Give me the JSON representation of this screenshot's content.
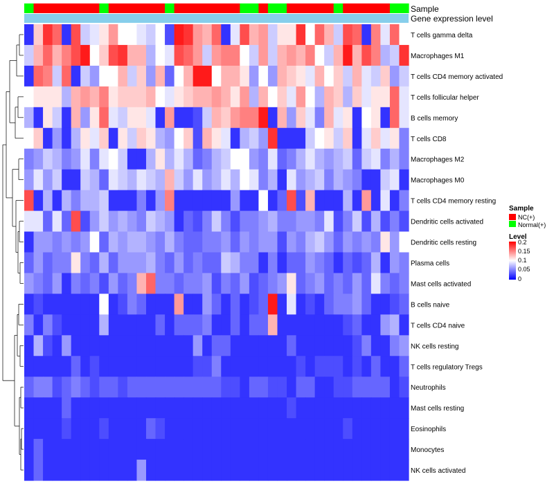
{
  "chart_data": {
    "type": "heatmap",
    "title": "",
    "annotation_tracks": [
      {
        "label": "Sample"
      },
      {
        "label": "Gene expression level"
      }
    ],
    "legend_placement": "right",
    "legends": {
      "sample": {
        "title": "Sample",
        "entries": [
          {
            "label": "NC(+)",
            "color": "#ff0000"
          },
          {
            "label": "Normal(+)",
            "color": "#00ff00"
          }
        ]
      },
      "level": {
        "title": "Level",
        "ticks": [
          "0.2",
          "0.15",
          "0.1",
          "0.05",
          "0"
        ],
        "range": [
          0,
          0.2
        ],
        "colors": {
          "low": "#0000ff",
          "mid": "#ffffff",
          "high": "#ff0000"
        }
      }
    },
    "sample_groups": [
      "Normal(+)",
      "NC(+)",
      "NC(+)",
      "NC(+)",
      "NC(+)",
      "NC(+)",
      "NC(+)",
      "NC(+)",
      "Normal(+)",
      "NC(+)",
      "NC(+)",
      "NC(+)",
      "NC(+)",
      "NC(+)",
      "NC(+)",
      "Normal(+)",
      "NC(+)",
      "NC(+)",
      "NC(+)",
      "NC(+)",
      "NC(+)",
      "NC(+)",
      "NC(+)",
      "Normal(+)",
      "Normal(+)",
      "NC(+)",
      "Normal(+)",
      "Normal(+)",
      "NC(+)",
      "NC(+)",
      "NC(+)",
      "NC(+)",
      "NC(+)",
      "Normal(+)",
      "NC(+)",
      "NC(+)",
      "NC(+)",
      "NC(+)",
      "NC(+)",
      "Normal(+)",
      "Normal(+)"
    ],
    "rows": [
      {
        "label": "T cells gamma delta",
        "values": [
          0.02,
          0.12,
          0.18,
          0.16,
          0.02,
          0.17,
          0.08,
          0.09,
          0.11,
          0.14,
          0.1,
          0.1,
          0.09,
          0.08,
          0.1,
          0.03,
          0.19,
          0.18,
          0.14,
          0.13,
          0.16,
          0.02,
          0.09,
          0.17,
          0.13,
          0.14,
          0.08,
          0.11,
          0.11,
          0.18,
          0.1,
          0.16,
          0.13,
          0.08,
          0.17,
          0.16,
          0.02,
          0.15,
          0.09,
          0.16,
          0.1
        ]
      },
      {
        "label": "Macrophages M1",
        "values": [
          0.08,
          0.13,
          0.16,
          0.13,
          0.15,
          0.17,
          0.19,
          0.1,
          0.12,
          0.17,
          0.18,
          0.13,
          0.13,
          0.07,
          0.1,
          0.09,
          0.17,
          0.16,
          0.14,
          0.08,
          0.14,
          0.15,
          0.15,
          0.1,
          0.08,
          0.14,
          0.08,
          0.13,
          0.14,
          0.13,
          0.15,
          0.1,
          0.08,
          0.13,
          0.19,
          0.13,
          0.17,
          0.15,
          0.07,
          0.08,
          0.18
        ]
      },
      {
        "label": "T cells CD4 memory activated",
        "values": [
          0.02,
          0.16,
          0.15,
          0.08,
          0.16,
          0.02,
          0.08,
          0.06,
          0.1,
          0.1,
          0.13,
          0.08,
          0.12,
          0.06,
          0.13,
          0.04,
          0.1,
          0.13,
          0.19,
          0.19,
          0.1,
          0.13,
          0.13,
          0.11,
          0.06,
          0.1,
          0.06,
          0.13,
          0.12,
          0.11,
          0.09,
          0.13,
          0.1,
          0.12,
          0.08,
          0.13,
          0.09,
          0.08,
          0.12,
          0.06,
          0.08
        ]
      },
      {
        "label": "T cells follicular helper",
        "values": [
          0.1,
          0.11,
          0.11,
          0.11,
          0.07,
          0.13,
          0.14,
          0.13,
          0.15,
          0.11,
          0.12,
          0.12,
          0.12,
          0.13,
          0.1,
          0.09,
          0.11,
          0.12,
          0.13,
          0.13,
          0.14,
          0.13,
          0.11,
          0.14,
          0.07,
          0.13,
          0.1,
          0.12,
          0.09,
          0.14,
          0.1,
          0.07,
          0.13,
          0.12,
          0.07,
          0.12,
          0.09,
          0.11,
          0.11,
          0.16,
          0.09
        ]
      },
      {
        "label": "B cells memory",
        "values": [
          0.07,
          0.02,
          0.11,
          0.08,
          0.02,
          0.13,
          0.06,
          0.11,
          0.16,
          0.09,
          0.08,
          0.11,
          0.11,
          0.09,
          0.02,
          0.14,
          0.02,
          0.02,
          0.03,
          0.08,
          0.13,
          0.12,
          0.14,
          0.15,
          0.15,
          0.19,
          0.02,
          0.13,
          0.06,
          0.12,
          0.09,
          0.05,
          0.13,
          0.09,
          0.11,
          0.02,
          0.1,
          0.11,
          0.02,
          0.16,
          0.09
        ]
      },
      {
        "label": "T cells CD8",
        "values": [
          0.1,
          0.12,
          0.02,
          0.06,
          0.02,
          0.07,
          0.11,
          0.09,
          0.12,
          0.02,
          0.11,
          0.08,
          0.12,
          0.11,
          0.07,
          0.06,
          0.1,
          0.12,
          0.03,
          0.13,
          0.11,
          0.09,
          0.02,
          0.07,
          0.08,
          0.06,
          0.18,
          0.02,
          0.02,
          0.02,
          0.08,
          0.1,
          0.11,
          0.08,
          0.12,
          0.02,
          0.09,
          0.12,
          0.09,
          0.11,
          0.05
        ]
      },
      {
        "label": "Macrophages M2",
        "values": [
          0.05,
          0.06,
          0.08,
          0.07,
          0.05,
          0.06,
          0.09,
          0.05,
          0.09,
          0.1,
          0.08,
          0.02,
          0.02,
          0.07,
          0.11,
          0.07,
          0.09,
          0.07,
          0.04,
          0.05,
          0.07,
          0.08,
          0.1,
          0.1,
          0.06,
          0.05,
          0.09,
          0.04,
          0.05,
          0.07,
          0.09,
          0.07,
          0.06,
          0.07,
          0.08,
          0.04,
          0.08,
          0.09,
          0.05,
          0.07,
          0.05
        ]
      },
      {
        "label": "Macrophages M0",
        "values": [
          0.06,
          0.09,
          0.06,
          0.08,
          0.02,
          0.02,
          0.08,
          0.07,
          0.04,
          0.09,
          0.08,
          0.07,
          0.09,
          0.08,
          0.07,
          0.13,
          0.08,
          0.06,
          0.09,
          0.06,
          0.07,
          0.09,
          0.07,
          0.1,
          0.09,
          0.05,
          0.07,
          0.02,
          0.09,
          0.06,
          0.07,
          0.08,
          0.05,
          0.07,
          0.06,
          0.05,
          0.02,
          0.02,
          0.08,
          0.09,
          0.02
        ]
      },
      {
        "label": "T cells CD4 memory resting",
        "values": [
          0.17,
          0.02,
          0.07,
          0.02,
          0.07,
          0.05,
          0.07,
          0.07,
          0.08,
          0.02,
          0.02,
          0.02,
          0.05,
          0.02,
          0.06,
          0.15,
          0.02,
          0.02,
          0.02,
          0.02,
          0.02,
          0.02,
          0.06,
          0.02,
          0.02,
          0.1,
          0.02,
          0.04,
          0.17,
          0.03,
          0.13,
          0.02,
          0.02,
          0.02,
          0.07,
          0.02,
          0.14,
          0.02,
          0.09,
          0.02,
          0.05
        ]
      },
      {
        "label": "Dendritic cells activated",
        "values": [
          0.09,
          0.09,
          0.04,
          0.09,
          0.04,
          0.17,
          0.03,
          0.06,
          0.08,
          0.06,
          0.07,
          0.06,
          0.05,
          0.08,
          0.07,
          0.06,
          0.02,
          0.04,
          0.03,
          0.05,
          0.08,
          0.05,
          0.03,
          0.05,
          0.05,
          0.06,
          0.07,
          0.05,
          0.05,
          0.06,
          0.06,
          0.05,
          0.09,
          0.03,
          0.05,
          0.08,
          0.03,
          0.07,
          0.03,
          0.05,
          0.03
        ]
      },
      {
        "label": "Dendritic cells resting",
        "values": [
          0.02,
          0.06,
          0.06,
          0.05,
          0.06,
          0.05,
          0.06,
          0.1,
          0.04,
          0.07,
          0.06,
          0.07,
          0.07,
          0.06,
          0.05,
          0.07,
          0.05,
          0.04,
          0.04,
          0.05,
          0.05,
          0.06,
          0.04,
          0.06,
          0.05,
          0.06,
          0.06,
          0.03,
          0.06,
          0.05,
          0.07,
          0.08,
          0.06,
          0.04,
          0.06,
          0.05,
          0.06,
          0.05,
          0.11,
          0.06,
          0.1
        ]
      },
      {
        "label": "Plasma cells",
        "values": [
          0.04,
          0.06,
          0.04,
          0.05,
          0.05,
          0.11,
          0.05,
          0.04,
          0.07,
          0.04,
          0.06,
          0.06,
          0.06,
          0.07,
          0.05,
          0.04,
          0.06,
          0.04,
          0.05,
          0.04,
          0.04,
          0.08,
          0.07,
          0.05,
          0.05,
          0.02,
          0.05,
          0.02,
          0.04,
          0.04,
          0.06,
          0.05,
          0.04,
          0.02,
          0.04,
          0.03,
          0.04,
          0.07,
          0.02,
          0.06,
          0.05
        ]
      },
      {
        "label": "Mast cells activated",
        "values": [
          0.06,
          0.05,
          0.04,
          0.06,
          0.02,
          0.05,
          0.04,
          0.05,
          0.03,
          0.06,
          0.04,
          0.05,
          0.13,
          0.16,
          0.05,
          0.05,
          0.04,
          0.05,
          0.05,
          0.06,
          0.03,
          0.05,
          0.04,
          0.06,
          0.03,
          0.04,
          0.05,
          0.06,
          0.11,
          0.04,
          0.05,
          0.06,
          0.04,
          0.05,
          0.04,
          0.06,
          0.04,
          0.09,
          0.05,
          0.04,
          0.05
        ]
      },
      {
        "label": "B cells naive",
        "values": [
          0.02,
          0.03,
          0.02,
          0.02,
          0.02,
          0.02,
          0.02,
          0.02,
          0.1,
          0.02,
          0.03,
          0.05,
          0.04,
          0.02,
          0.02,
          0.02,
          0.14,
          0.02,
          0.02,
          0.06,
          0.04,
          0.02,
          0.04,
          0.02,
          0.03,
          0.04,
          0.19,
          0.02,
          0.09,
          0.02,
          0.03,
          0.02,
          0.04,
          0.05,
          0.05,
          0.06,
          0.04,
          0.02,
          0.02,
          0.03,
          0.04
        ]
      },
      {
        "label": "T cells CD4 naive",
        "values": [
          0.05,
          0.02,
          0.05,
          0.03,
          0.02,
          0.02,
          0.02,
          0.02,
          0.07,
          0.02,
          0.02,
          0.02,
          0.02,
          0.02,
          0.04,
          0.02,
          0.04,
          0.04,
          0.04,
          0.05,
          0.02,
          0.02,
          0.04,
          0.02,
          0.04,
          0.04,
          0.13,
          0.02,
          0.02,
          0.02,
          0.02,
          0.02,
          0.02,
          0.02,
          0.03,
          0.04,
          0.02,
          0.02,
          0.06,
          0.07,
          0.02
        ]
      },
      {
        "label": "NK cells resting",
        "values": [
          0.02,
          0.07,
          0.03,
          0.02,
          0.06,
          0.02,
          0.02,
          0.02,
          0.02,
          0.02,
          0.02,
          0.02,
          0.02,
          0.02,
          0.02,
          0.02,
          0.02,
          0.02,
          0.06,
          0.02,
          0.04,
          0.04,
          0.02,
          0.02,
          0.02,
          0.02,
          0.02,
          0.02,
          0.04,
          0.02,
          0.02,
          0.02,
          0.02,
          0.02,
          0.02,
          0.03,
          0.05,
          0.02,
          0.02,
          0.05,
          0.06
        ]
      },
      {
        "label": "T cells regulatory  Tregs",
        "values": [
          0.02,
          0.02,
          0.02,
          0.02,
          0.02,
          0.04,
          0.02,
          0.03,
          0.02,
          0.02,
          0.02,
          0.02,
          0.02,
          0.02,
          0.02,
          0.02,
          0.02,
          0.02,
          0.03,
          0.03,
          0.05,
          0.02,
          0.02,
          0.02,
          0.02,
          0.02,
          0.02,
          0.02,
          0.02,
          0.03,
          0.02,
          0.03,
          0.03,
          0.03,
          0.02,
          0.03,
          0.02,
          0.04,
          0.02,
          0.02,
          0.04
        ]
      },
      {
        "label": "Neutrophils",
        "values": [
          0.04,
          0.05,
          0.05,
          0.03,
          0.04,
          0.05,
          0.04,
          0.03,
          0.04,
          0.04,
          0.03,
          0.04,
          0.04,
          0.04,
          0.04,
          0.04,
          0.04,
          0.04,
          0.04,
          0.04,
          0.04,
          0.03,
          0.03,
          0.02,
          0.04,
          0.04,
          0.03,
          0.03,
          0.02,
          0.04,
          0.04,
          0.02,
          0.02,
          0.03,
          0.03,
          0.04,
          0.04,
          0.04,
          0.04,
          0.02,
          0.03
        ]
      },
      {
        "label": "Mast cells resting",
        "values": [
          0.02,
          0.02,
          0.02,
          0.02,
          0.04,
          0.02,
          0.02,
          0.02,
          0.02,
          0.02,
          0.02,
          0.02,
          0.02,
          0.02,
          0.02,
          0.02,
          0.02,
          0.02,
          0.02,
          0.02,
          0.02,
          0.02,
          0.02,
          0.02,
          0.02,
          0.02,
          0.02,
          0.02,
          0.03,
          0.02,
          0.02,
          0.02,
          0.02,
          0.02,
          0.02,
          0.02,
          0.02,
          0.02,
          0.02,
          0.02,
          0.02
        ]
      },
      {
        "label": "Eosinophils",
        "values": [
          0.02,
          0.02,
          0.02,
          0.02,
          0.03,
          0.02,
          0.02,
          0.02,
          0.03,
          0.02,
          0.02,
          0.02,
          0.02,
          0.04,
          0.03,
          0.02,
          0.02,
          0.02,
          0.02,
          0.02,
          0.02,
          0.02,
          0.02,
          0.02,
          0.02,
          0.02,
          0.02,
          0.02,
          0.02,
          0.02,
          0.02,
          0.02,
          0.02,
          0.02,
          0.03,
          0.02,
          0.02,
          0.02,
          0.02,
          0.02,
          0.02
        ]
      },
      {
        "label": "Monocytes",
        "values": [
          0.02,
          0.04,
          0.02,
          0.02,
          0.02,
          0.02,
          0.02,
          0.02,
          0.02,
          0.02,
          0.02,
          0.02,
          0.02,
          0.02,
          0.02,
          0.02,
          0.02,
          0.02,
          0.02,
          0.02,
          0.02,
          0.02,
          0.02,
          0.02,
          0.02,
          0.02,
          0.02,
          0.02,
          0.02,
          0.02,
          0.02,
          0.02,
          0.02,
          0.02,
          0.02,
          0.02,
          0.02,
          0.02,
          0.02,
          0.02,
          0.02
        ]
      },
      {
        "label": "NK cells activated",
        "values": [
          0.02,
          0.04,
          0.02,
          0.02,
          0.02,
          0.02,
          0.02,
          0.02,
          0.02,
          0.02,
          0.02,
          0.02,
          0.06,
          0.02,
          0.02,
          0.02,
          0.02,
          0.02,
          0.02,
          0.02,
          0.02,
          0.02,
          0.02,
          0.02,
          0.02,
          0.02,
          0.02,
          0.02,
          0.02,
          0.02,
          0.02,
          0.02,
          0.02,
          0.02,
          0.02,
          0.02,
          0.02,
          0.02,
          0.02,
          0.02,
          0.02
        ]
      }
    ]
  }
}
